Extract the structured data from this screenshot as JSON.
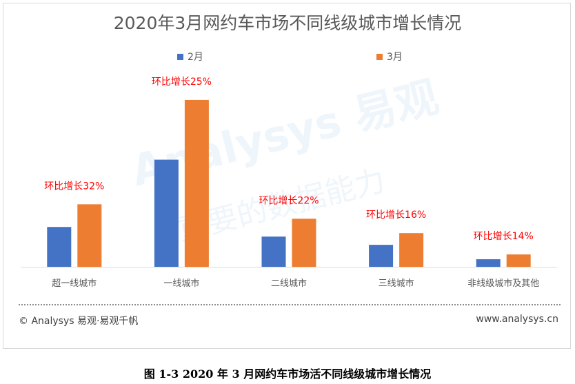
{
  "chart_data": {
    "type": "bar",
    "title": "2020年3月网约车市场不同线级城市增长情况",
    "categories": [
      "超一线城市",
      "一线城市",
      "二线城市",
      "三线城市",
      "非线级城市及其他"
    ],
    "series": [
      {
        "name": "2月",
        "color": "#4472c4",
        "values": [
          58,
          156,
          44,
          32,
          11
        ]
      },
      {
        "name": "3月",
        "color": "#ed7d31",
        "values": [
          91,
          243,
          70,
          49,
          18
        ]
      }
    ],
    "annotations": [
      "环比增长32%",
      "环比增长25%",
      "环比增长22%",
      "环比增长16%",
      "环比增长14%"
    ],
    "annotation_color": "#ff0000",
    "ylim": [
      0,
      260
    ],
    "grid": false,
    "legend_position": "top",
    "xlabel": "",
    "ylabel": ""
  },
  "watermark": {
    "line1": "Analysys 易观",
    "line2": "重要的数据能力"
  },
  "footer": {
    "left": "© Analysys 易观·易观千帆",
    "right": "www.analysys.cn"
  },
  "caption": "图 1-3  2020 年 3 月网约车市场活不同线级城市增长情况"
}
